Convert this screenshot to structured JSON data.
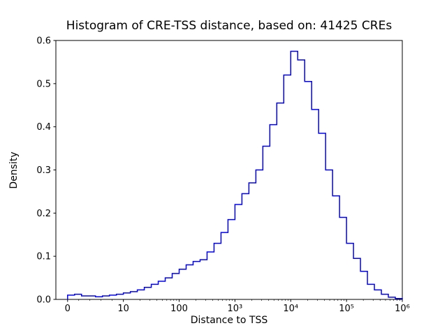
{
  "window": {
    "background": "#ffffff"
  },
  "chart_data": {
    "type": "line",
    "subtype": "step-histogram",
    "title": "Histogram of CRE-TSS distance, based on: 41425 CREs",
    "xlabel": "Distance to TSS",
    "ylabel": "Density",
    "n_cres_in_title": 41425,
    "x_scale": "symlog-log10-units",
    "legend": "none",
    "grid": false,
    "line_color": "#0000ff",
    "axes_color": "#000000",
    "ylim": [
      0,
      0.6
    ],
    "xlim_log10_units": [
      -0.21,
      6
    ],
    "x_ticks": [
      {
        "u": 0,
        "label": "0"
      },
      {
        "u": 1,
        "label": "10"
      },
      {
        "u": 2,
        "label": "100"
      },
      {
        "u": 3,
        "label": "10³"
      },
      {
        "u": 4,
        "label": "10⁴"
      },
      {
        "u": 5,
        "label": "10⁵"
      },
      {
        "u": 6,
        "label": "10⁶"
      }
    ],
    "y_ticks": [
      {
        "v": 0.0,
        "label": "0.0"
      },
      {
        "v": 0.1,
        "label": "0.1"
      },
      {
        "v": 0.2,
        "label": "0.2"
      },
      {
        "v": 0.3,
        "label": "0.3"
      },
      {
        "v": 0.4,
        "label": "0.4"
      },
      {
        "v": 0.5,
        "label": "0.5"
      },
      {
        "v": 0.6,
        "label": "0.6"
      }
    ],
    "bin_edges_log10": [
      0,
      0.125,
      0.25,
      0.375,
      0.5,
      0.625,
      0.75,
      0.875,
      1,
      1.125,
      1.25,
      1.375,
      1.5,
      1.625,
      1.75,
      1.875,
      2,
      2.125,
      2.25,
      2.375,
      2.5,
      2.625,
      2.75,
      2.875,
      3,
      3.125,
      3.25,
      3.375,
      3.5,
      3.625,
      3.75,
      3.875,
      4,
      4.125,
      4.25,
      4.375,
      4.5,
      4.625,
      4.75,
      4.875,
      5,
      5.125,
      5.25,
      5.375,
      5.5,
      5.625,
      5.75,
      5.875,
      6
    ],
    "densities": [
      0.01,
      0.012,
      0.008,
      0.008,
      0.006,
      0.008,
      0.01,
      0.012,
      0.015,
      0.018,
      0.022,
      0.028,
      0.035,
      0.042,
      0.05,
      0.06,
      0.07,
      0.08,
      0.088,
      0.092,
      0.11,
      0.13,
      0.155,
      0.185,
      0.22,
      0.245,
      0.27,
      0.3,
      0.355,
      0.405,
      0.455,
      0.52,
      0.575,
      0.555,
      0.505,
      0.44,
      0.385,
      0.3,
      0.24,
      0.19,
      0.13,
      0.095,
      0.065,
      0.035,
      0.022,
      0.012,
      0.005,
      0.002
    ]
  }
}
